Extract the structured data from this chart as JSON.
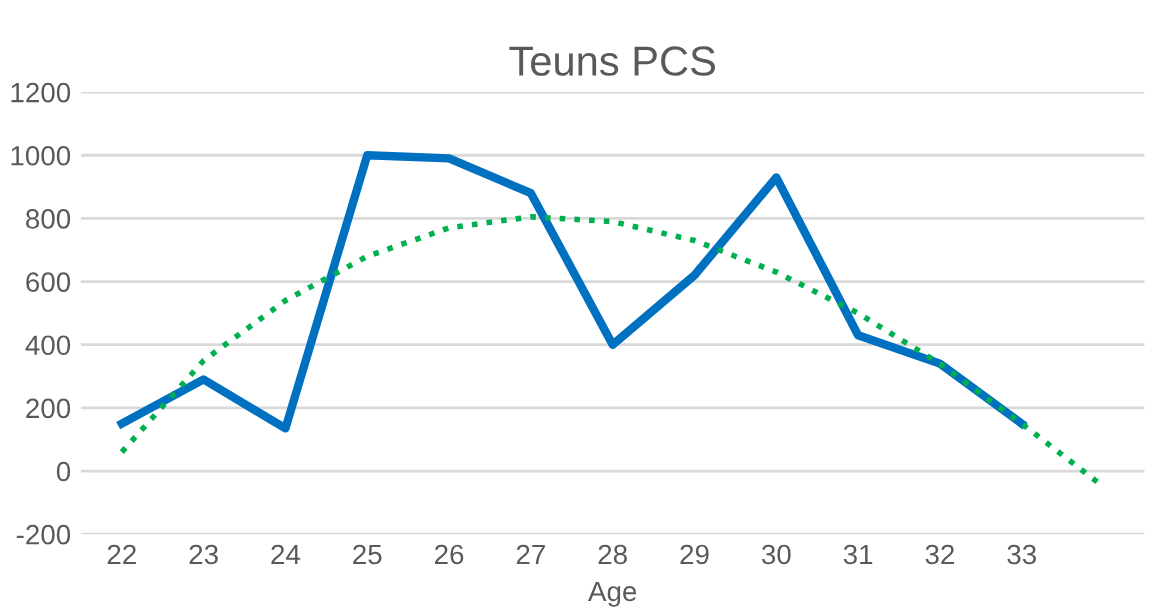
{
  "chart_data": {
    "type": "line",
    "title": "Teuns PCS",
    "xlabel": "Age",
    "x": [
      22,
      23,
      24,
      25,
      26,
      27,
      28,
      29,
      30,
      31,
      32,
      33
    ],
    "series": [
      {
        "color": "#0070c0",
        "values": [
          150,
          290,
          135,
          1000,
          990,
          880,
          400,
          620,
          930,
          430,
          340,
          150
        ],
        "line_style": "solid"
      },
      {
        "color": "#00b050",
        "x": [
          22,
          23,
          24,
          25,
          26,
          27,
          28,
          29,
          30,
          31,
          32,
          33,
          34
        ],
        "values": [
          60,
          350,
          540,
          680,
          770,
          805,
          790,
          730,
          630,
          500,
          340,
          150,
          -50
        ],
        "line_style": "dotted"
      }
    ],
    "xlim": [
      21.5,
      34.5
    ],
    "xticks": [
      22,
      23,
      24,
      25,
      26,
      27,
      28,
      29,
      30,
      31,
      32,
      33
    ],
    "ylim": [
      -200,
      1200
    ],
    "yticks": [
      -200,
      0,
      200,
      400,
      600,
      800,
      1000,
      1200
    ],
    "grid": "y",
    "marker": "none"
  }
}
